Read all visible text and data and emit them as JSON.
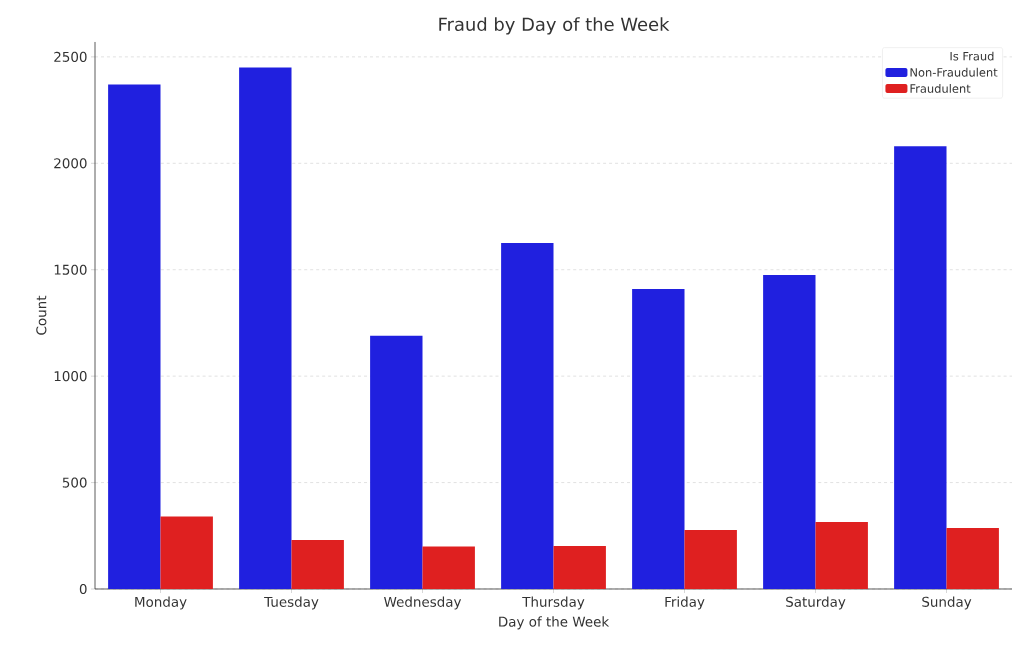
{
  "chart_data": {
    "type": "bar",
    "title": "Fraud by Day of the Week",
    "xlabel": "Day of the Week",
    "ylabel": "Count",
    "legend_title": "Is Fraud",
    "categories": [
      "Monday",
      "Tuesday",
      "Wednesday",
      "Thursday",
      "Friday",
      "Saturday",
      "Sunday"
    ],
    "series": [
      {
        "name": "Non-Fraudulent",
        "color": "#2020df",
        "values": [
          2370,
          2450,
          1190,
          1625,
          1410,
          1475,
          2080
        ]
      },
      {
        "name": "Fraudulent",
        "color": "#df2020",
        "values": [
          340,
          230,
          200,
          202,
          277,
          315,
          287
        ]
      }
    ],
    "ylim": [
      0,
      2570
    ],
    "yticks": [
      0,
      500,
      1000,
      1500,
      2000,
      2500
    ],
    "grid": "y",
    "legend": "top right"
  }
}
